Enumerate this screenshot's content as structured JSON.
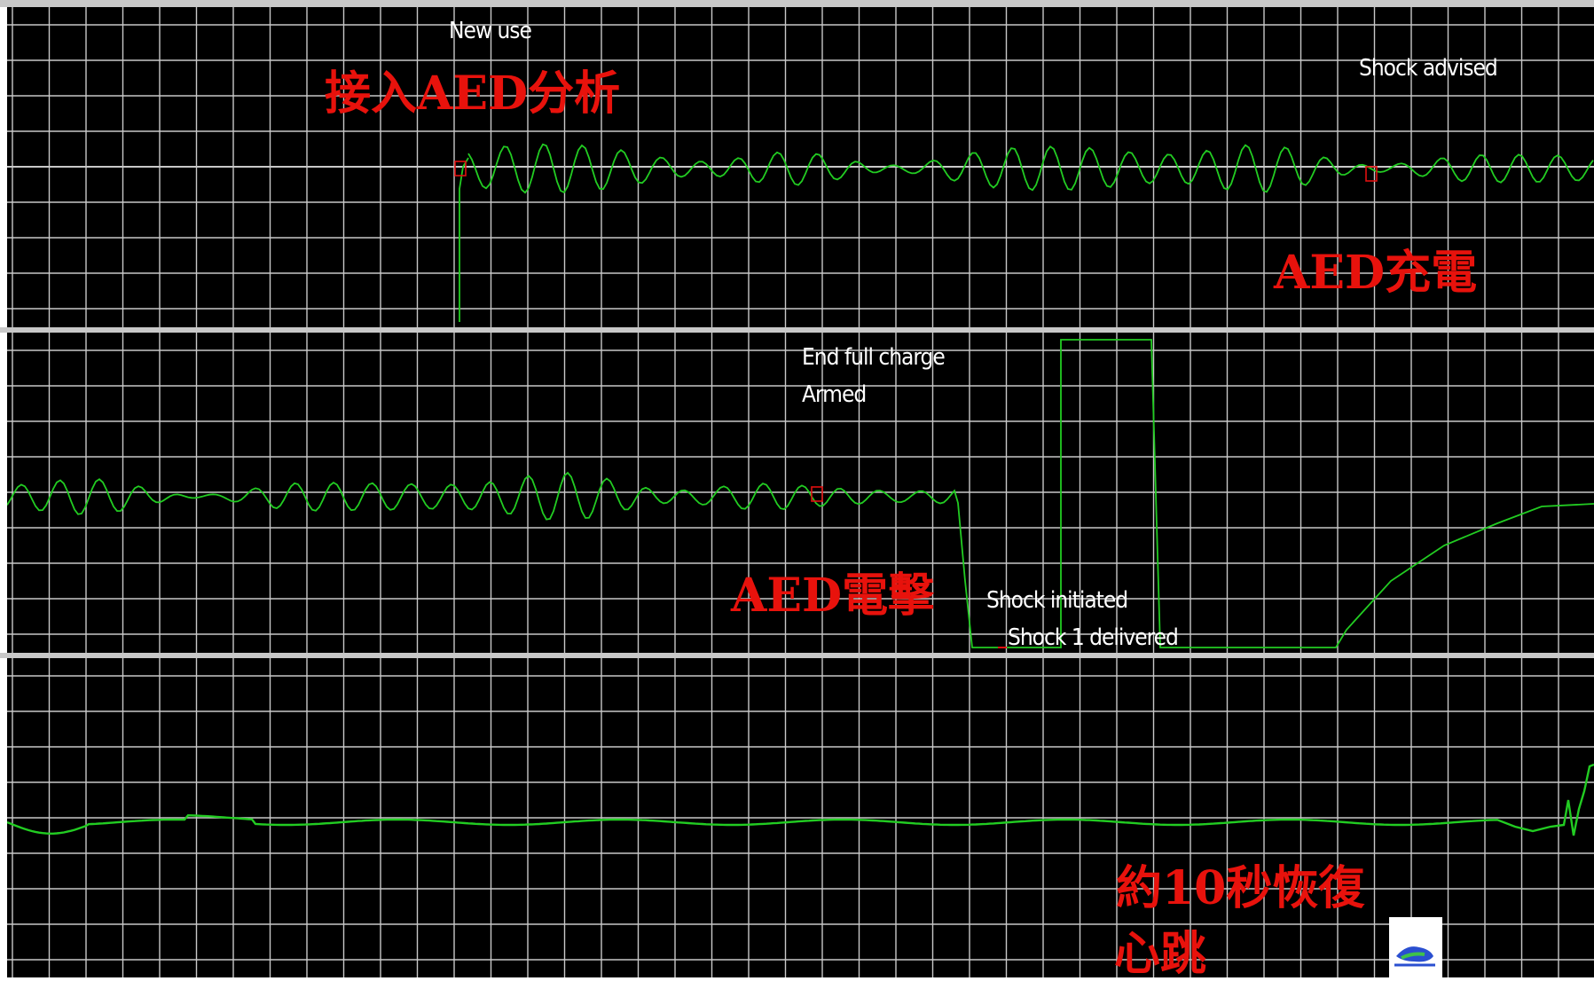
{
  "strips": [
    {
      "id": "strip-1",
      "events": [
        {
          "name": "new-use-label",
          "text": "New use"
        },
        {
          "name": "shock-advised-label",
          "text": "Shock advised"
        }
      ]
    },
    {
      "id": "strip-2",
      "events": [
        {
          "name": "end-full-charge-label",
          "text": "End full charge"
        },
        {
          "name": "armed-label",
          "text": "Armed"
        },
        {
          "name": "shock-initiated-label",
          "text": "Shock initiated"
        },
        {
          "name": "shock-delivered-label",
          "text": "Shock 1 delivered"
        }
      ]
    },
    {
      "id": "strip-3",
      "events": []
    }
  ],
  "annotations": {
    "connect_aed_analyze": "接入AED分析",
    "aed_charging": "AED充電",
    "aed_shock": "AED電擊",
    "recovery_line1": "約10秒恢復",
    "recovery_line2": "心跳"
  },
  "colors": {
    "background": "#000000",
    "grid": "#c8c8c8",
    "trace": "#22cc22",
    "event_text": "#ffffff",
    "annotation": "#e8120c",
    "marker": "#e01010"
  },
  "icons": {
    "logo": "logo-icon"
  }
}
